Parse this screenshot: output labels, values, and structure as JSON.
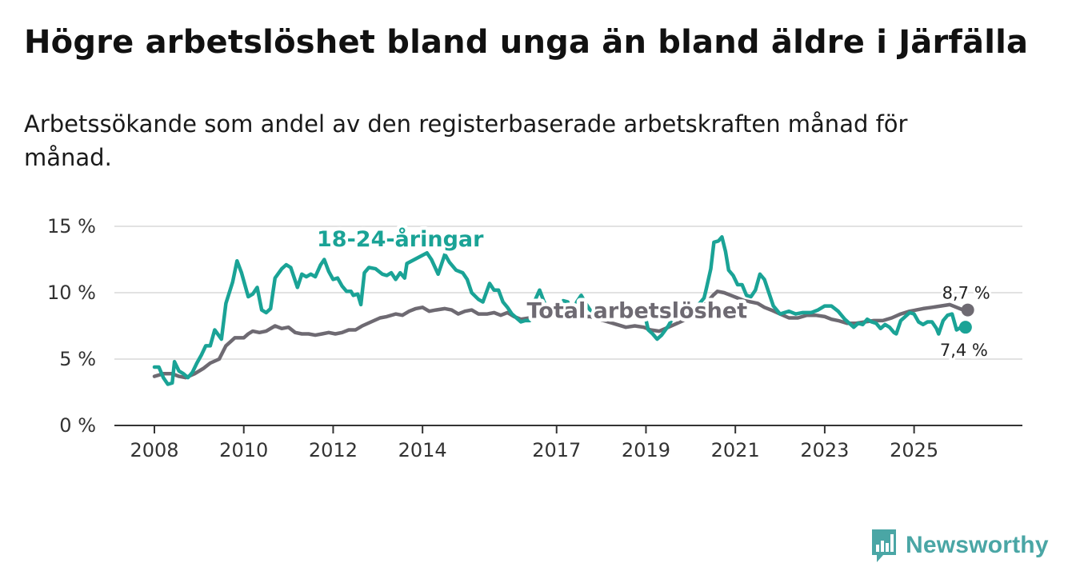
{
  "title": "Högre arbetslöshet bland unga än bland äldre i Järfälla",
  "subtitle": "Arbetssökande som andel av den registerbaserade arbetskraften månad för månad.",
  "brand": {
    "name": "Newsworthy",
    "icon": "bar-chart-icon",
    "color": "#4aa6a5"
  },
  "chart_data": {
    "type": "line",
    "xlabel": "",
    "ylabel": "",
    "xlim": [
      2008,
      2026.6
    ],
    "ylim": [
      0,
      15
    ],
    "y_ticks": [
      {
        "value": 0,
        "label": "0 %"
      },
      {
        "value": 5,
        "label": "5 %"
      },
      {
        "value": 10,
        "label": "10 %"
      },
      {
        "value": 15,
        "label": "15 %"
      }
    ],
    "x_ticks": [
      {
        "value": 2008,
        "label": "2008"
      },
      {
        "value": 2010,
        "label": "2010"
      },
      {
        "value": 2012,
        "label": "2012"
      },
      {
        "value": 2014,
        "label": "2014"
      },
      {
        "value": 2017,
        "label": "2017"
      },
      {
        "value": 2019,
        "label": "2019"
      },
      {
        "value": 2021,
        "label": "2021"
      },
      {
        "value": 2023,
        "label": "2023"
      },
      {
        "value": 2025,
        "label": "2025"
      }
    ],
    "grid": true,
    "series": [
      {
        "name": "18-24-åringar",
        "color": "#1aa396",
        "label_at": [
          2013.5,
          13.5
        ],
        "end_label": "7,4 %",
        "points": [
          [
            2008.0,
            4.4
          ],
          [
            2008.1,
            4.4
          ],
          [
            2008.2,
            3.6
          ],
          [
            2008.3,
            3.1
          ],
          [
            2008.4,
            3.2
          ],
          [
            2008.45,
            4.8
          ],
          [
            2008.55,
            4.1
          ],
          [
            2008.65,
            3.9
          ],
          [
            2008.75,
            3.6
          ],
          [
            2008.85,
            4.0
          ],
          [
            2008.95,
            4.7
          ],
          [
            2009.05,
            5.3
          ],
          [
            2009.15,
            6.0
          ],
          [
            2009.25,
            6.0
          ],
          [
            2009.35,
            7.2
          ],
          [
            2009.5,
            6.5
          ],
          [
            2009.6,
            9.2
          ],
          [
            2009.75,
            10.8
          ],
          [
            2009.85,
            12.4
          ],
          [
            2009.95,
            11.5
          ],
          [
            2010.1,
            9.7
          ],
          [
            2010.2,
            9.9
          ],
          [
            2010.3,
            10.4
          ],
          [
            2010.4,
            8.7
          ],
          [
            2010.5,
            8.5
          ],
          [
            2010.6,
            8.8
          ],
          [
            2010.7,
            11.1
          ],
          [
            2010.85,
            11.8
          ],
          [
            2010.95,
            12.1
          ],
          [
            2011.05,
            11.9
          ],
          [
            2011.2,
            10.4
          ],
          [
            2011.3,
            11.4
          ],
          [
            2011.4,
            11.2
          ],
          [
            2011.5,
            11.4
          ],
          [
            2011.6,
            11.2
          ],
          [
            2011.72,
            12.1
          ],
          [
            2011.8,
            12.5
          ],
          [
            2011.9,
            11.6
          ],
          [
            2012.0,
            11.0
          ],
          [
            2012.1,
            11.1
          ],
          [
            2012.2,
            10.5
          ],
          [
            2012.3,
            10.1
          ],
          [
            2012.4,
            10.1
          ],
          [
            2012.45,
            9.8
          ],
          [
            2012.55,
            9.9
          ],
          [
            2012.62,
            9.1
          ],
          [
            2012.7,
            11.5
          ],
          [
            2012.8,
            11.9
          ],
          [
            2012.95,
            11.8
          ],
          [
            2013.1,
            11.4
          ],
          [
            2013.2,
            11.3
          ],
          [
            2013.3,
            11.5
          ],
          [
            2013.4,
            11.0
          ],
          [
            2013.5,
            11.5
          ],
          [
            2013.6,
            11.1
          ],
          [
            2013.65,
            12.2
          ],
          [
            2014.1,
            13.0
          ],
          [
            2014.2,
            12.5
          ],
          [
            2014.35,
            11.4
          ],
          [
            2014.5,
            12.9
          ],
          [
            2014.6,
            12.3
          ],
          [
            2014.75,
            11.7
          ],
          [
            2014.9,
            11.5
          ],
          [
            2015.0,
            11.0
          ],
          [
            2015.1,
            10.0
          ],
          [
            2015.25,
            9.5
          ],
          [
            2015.35,
            9.3
          ],
          [
            2015.5,
            10.7
          ],
          [
            2015.6,
            10.2
          ],
          [
            2015.7,
            10.2
          ],
          [
            2015.8,
            9.3
          ],
          [
            2015.9,
            8.9
          ],
          [
            2016.0,
            8.4
          ],
          [
            2016.1,
            8.1
          ],
          [
            2016.2,
            7.8
          ],
          [
            2016.3,
            7.9
          ],
          [
            2016.4,
            7.9
          ],
          [
            2016.5,
            9.3
          ],
          [
            2016.62,
            10.2
          ],
          [
            2016.72,
            9.3
          ],
          [
            2016.85,
            8.6
          ],
          [
            2016.95,
            8.3
          ],
          [
            2017.05,
            8.5
          ],
          [
            2017.15,
            9.4
          ],
          [
            2017.25,
            9.3
          ],
          [
            2017.35,
            8.3
          ],
          [
            2017.45,
            9.3
          ],
          [
            2017.55,
            9.8
          ],
          [
            2017.65,
            9.2
          ],
          [
            2017.75,
            8.7
          ],
          [
            2017.95,
            8.3
          ],
          [
            2018.15,
            8.4
          ],
          [
            2018.35,
            8.5
          ],
          [
            2018.55,
            8.7
          ],
          [
            2018.75,
            8.7
          ],
          [
            2018.95,
            8.7
          ],
          [
            2019.05,
            7.2
          ],
          [
            2019.15,
            6.9
          ],
          [
            2019.25,
            6.5
          ],
          [
            2019.35,
            6.8
          ],
          [
            2019.5,
            7.5
          ],
          [
            2019.6,
            8.1
          ],
          [
            2019.7,
            8.6
          ],
          [
            2019.8,
            8.8
          ],
          [
            2019.95,
            8.6
          ],
          [
            2020.1,
            8.8
          ],
          [
            2020.2,
            9.2
          ],
          [
            2020.3,
            9.6
          ],
          [
            2020.35,
            10.3
          ],
          [
            2020.45,
            11.8
          ],
          [
            2020.52,
            13.8
          ],
          [
            2020.62,
            13.9
          ],
          [
            2020.7,
            14.2
          ],
          [
            2020.78,
            13.1
          ],
          [
            2020.85,
            11.7
          ],
          [
            2020.95,
            11.3
          ],
          [
            2021.05,
            10.6
          ],
          [
            2021.15,
            10.6
          ],
          [
            2021.25,
            9.8
          ],
          [
            2021.35,
            9.7
          ],
          [
            2021.45,
            10.2
          ],
          [
            2021.55,
            11.4
          ],
          [
            2021.65,
            11.0
          ],
          [
            2021.75,
            10.0
          ],
          [
            2021.85,
            9.0
          ],
          [
            2022.0,
            8.4
          ],
          [
            2022.2,
            8.6
          ],
          [
            2022.35,
            8.4
          ],
          [
            2022.5,
            8.5
          ],
          [
            2022.7,
            8.5
          ],
          [
            2022.85,
            8.7
          ],
          [
            2023.0,
            9.0
          ],
          [
            2023.15,
            9.0
          ],
          [
            2023.3,
            8.6
          ],
          [
            2023.45,
            8.0
          ],
          [
            2023.55,
            7.7
          ],
          [
            2023.65,
            7.4
          ],
          [
            2023.75,
            7.7
          ],
          [
            2023.85,
            7.6
          ],
          [
            2023.95,
            8.0
          ],
          [
            2024.05,
            7.8
          ],
          [
            2024.15,
            7.7
          ],
          [
            2024.25,
            7.3
          ],
          [
            2024.35,
            7.6
          ],
          [
            2024.45,
            7.4
          ],
          [
            2024.55,
            7.0
          ],
          [
            2024.6,
            6.9
          ],
          [
            2024.7,
            7.9
          ],
          [
            2024.8,
            8.2
          ],
          [
            2024.9,
            8.5
          ],
          [
            2025.0,
            8.4
          ],
          [
            2025.1,
            7.8
          ],
          [
            2025.2,
            7.6
          ],
          [
            2025.3,
            7.8
          ],
          [
            2025.4,
            7.8
          ],
          [
            2025.5,
            7.3
          ],
          [
            2025.55,
            6.9
          ],
          [
            2025.65,
            7.9
          ],
          [
            2025.75,
            8.3
          ],
          [
            2025.85,
            8.4
          ],
          [
            2025.95,
            7.2
          ],
          [
            2026.05,
            7.4
          ],
          [
            2026.15,
            7.4
          ]
        ]
      },
      {
        "name": "Total arbetslöshet",
        "color": "#6e6a72",
        "label_at": [
          2018.8,
          8.1
        ],
        "end_label": "8,7 %",
        "points": [
          [
            2008.0,
            3.7
          ],
          [
            2008.2,
            3.9
          ],
          [
            2008.4,
            3.9
          ],
          [
            2008.55,
            3.7
          ],
          [
            2008.7,
            3.6
          ],
          [
            2008.9,
            3.9
          ],
          [
            2009.1,
            4.3
          ],
          [
            2009.25,
            4.7
          ],
          [
            2009.45,
            5.0
          ],
          [
            2009.6,
            6.0
          ],
          [
            2009.8,
            6.6
          ],
          [
            2010.0,
            6.6
          ],
          [
            2010.1,
            6.9
          ],
          [
            2010.2,
            7.1
          ],
          [
            2010.35,
            7.0
          ],
          [
            2010.5,
            7.1
          ],
          [
            2010.6,
            7.3
          ],
          [
            2010.7,
            7.5
          ],
          [
            2010.85,
            7.3
          ],
          [
            2011.0,
            7.4
          ],
          [
            2011.15,
            7.0
          ],
          [
            2011.3,
            6.9
          ],
          [
            2011.45,
            6.9
          ],
          [
            2011.6,
            6.8
          ],
          [
            2011.75,
            6.9
          ],
          [
            2011.9,
            7.0
          ],
          [
            2012.05,
            6.9
          ],
          [
            2012.2,
            7.0
          ],
          [
            2012.35,
            7.2
          ],
          [
            2012.5,
            7.2
          ],
          [
            2012.65,
            7.5
          ],
          [
            2012.85,
            7.8
          ],
          [
            2013.05,
            8.1
          ],
          [
            2013.2,
            8.2
          ],
          [
            2013.4,
            8.4
          ],
          [
            2013.55,
            8.3
          ],
          [
            2013.7,
            8.6
          ],
          [
            2013.85,
            8.8
          ],
          [
            2014.0,
            8.9
          ],
          [
            2014.15,
            8.6
          ],
          [
            2014.3,
            8.7
          ],
          [
            2014.5,
            8.8
          ],
          [
            2014.65,
            8.7
          ],
          [
            2014.8,
            8.4
          ],
          [
            2014.95,
            8.6
          ],
          [
            2015.1,
            8.7
          ],
          [
            2015.25,
            8.4
          ],
          [
            2015.45,
            8.4
          ],
          [
            2015.6,
            8.5
          ],
          [
            2015.75,
            8.3
          ],
          [
            2015.9,
            8.5
          ],
          [
            2016.05,
            8.2
          ],
          [
            2016.2,
            8.0
          ],
          [
            2016.4,
            8.1
          ],
          [
            2016.55,
            8.4
          ],
          [
            2016.7,
            8.4
          ],
          [
            2016.85,
            8.5
          ],
          [
            2017.0,
            8.4
          ],
          [
            2017.2,
            8.4
          ],
          [
            2017.35,
            8.1
          ],
          [
            2017.55,
            8.2
          ],
          [
            2017.75,
            8.2
          ],
          [
            2017.95,
            8.0
          ],
          [
            2018.15,
            7.8
          ],
          [
            2018.35,
            7.6
          ],
          [
            2018.55,
            7.4
          ],
          [
            2018.75,
            7.5
          ],
          [
            2018.95,
            7.4
          ],
          [
            2019.1,
            7.2
          ],
          [
            2019.3,
            7.1
          ],
          [
            2019.5,
            7.4
          ],
          [
            2019.7,
            7.7
          ],
          [
            2019.9,
            8.0
          ],
          [
            2020.05,
            8.3
          ],
          [
            2020.2,
            8.8
          ],
          [
            2020.35,
            9.2
          ],
          [
            2020.5,
            9.8
          ],
          [
            2020.6,
            10.1
          ],
          [
            2020.75,
            10.0
          ],
          [
            2020.9,
            9.8
          ],
          [
            2021.05,
            9.6
          ],
          [
            2021.2,
            9.4
          ],
          [
            2021.35,
            9.3
          ],
          [
            2021.5,
            9.2
          ],
          [
            2021.65,
            8.9
          ],
          [
            2021.8,
            8.7
          ],
          [
            2022.0,
            8.4
          ],
          [
            2022.2,
            8.1
          ],
          [
            2022.4,
            8.1
          ],
          [
            2022.6,
            8.3
          ],
          [
            2022.8,
            8.3
          ],
          [
            2023.0,
            8.2
          ],
          [
            2023.15,
            8.0
          ],
          [
            2023.3,
            7.9
          ],
          [
            2023.5,
            7.7
          ],
          [
            2023.7,
            7.7
          ],
          [
            2023.9,
            7.8
          ],
          [
            2024.1,
            7.9
          ],
          [
            2024.3,
            7.9
          ],
          [
            2024.5,
            8.1
          ],
          [
            2024.7,
            8.4
          ],
          [
            2024.9,
            8.6
          ],
          [
            2025.05,
            8.7
          ],
          [
            2025.2,
            8.8
          ],
          [
            2025.4,
            8.9
          ],
          [
            2025.6,
            9.0
          ],
          [
            2025.8,
            9.1
          ],
          [
            2025.95,
            8.9
          ],
          [
            2026.1,
            8.7
          ],
          [
            2026.2,
            8.7
          ]
        ]
      }
    ]
  }
}
